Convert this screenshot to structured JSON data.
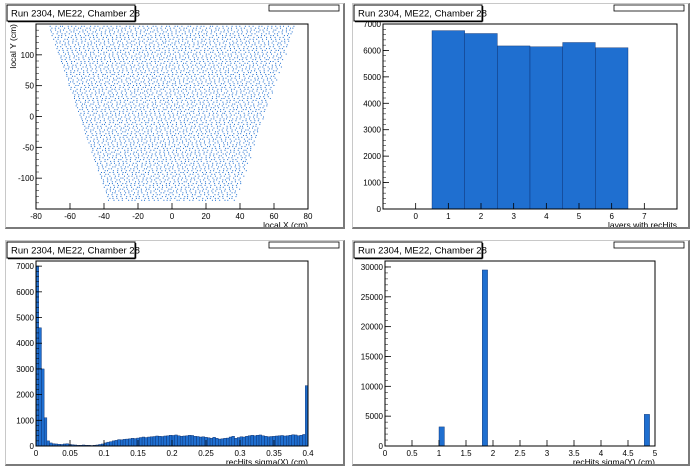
{
  "chart_data": [
    {
      "type": "scatter",
      "title": "Run 2304, ME22, Chamber 28",
      "stats_box": "",
      "xlabel": "local X (cm)",
      "ylabel": "local Y (cm)",
      "xlim": [
        -80,
        80
      ],
      "ylim": [
        -150,
        150
      ],
      "xticks": [
        -80,
        -60,
        -40,
        -20,
        0,
        20,
        40,
        60,
        80
      ],
      "yticks": [
        -100,
        -50,
        0,
        50,
        100
      ],
      "region": {
        "y": [
          -135,
          148
        ],
        "halfwidth_at_ymin": 37,
        "halfwidth_at_ymax": 72
      },
      "color": "#1f6fd0"
    },
    {
      "type": "bar",
      "title": "Run 2304, ME22, Chamber 28",
      "stats_box": "",
      "xlabel": "layers with recHits",
      "ylabel": "",
      "xlim": [
        -1,
        8
      ],
      "ylim": [
        0,
        7000
      ],
      "xticks": [
        0,
        1,
        2,
        3,
        4,
        5,
        6,
        7
      ],
      "yticks": [
        0,
        1000,
        2000,
        3000,
        4000,
        5000,
        6000,
        7000
      ],
      "bin_width": 1,
      "x": [
        1,
        2,
        3,
        4,
        5,
        6
      ],
      "values": [
        6750,
        6640,
        6170,
        6140,
        6300,
        6100
      ],
      "color": "#1f6fd0"
    },
    {
      "type": "bar",
      "title": "Run 2304, ME22, Chamber 28",
      "stats_box": "",
      "xlabel": "recHits sigma(X) (cm)",
      "ylabel": "",
      "xlim": [
        0,
        0.4
      ],
      "ylim": [
        0,
        7200
      ],
      "xticks": [
        0,
        0.05,
        0.1,
        0.15,
        0.2,
        0.25,
        0.3,
        0.35,
        0.4
      ],
      "xtick_labels": [
        "0",
        "0.05",
        "0.1",
        "0.15",
        "0.2",
        "0.25",
        "0.3",
        "0.35",
        "0.4"
      ],
      "yticks": [
        0,
        1000,
        2000,
        3000,
        4000,
        5000,
        6000,
        7000
      ],
      "bin_width": 0.004,
      "values": [
        7000,
        4600,
        3000,
        1100,
        200,
        120,
        90,
        80,
        70,
        60,
        80,
        90,
        60,
        50,
        40,
        30,
        30,
        40,
        30,
        30,
        20,
        30,
        40,
        60,
        80,
        120,
        150,
        170,
        200,
        220,
        250,
        240,
        260,
        270,
        280,
        300,
        290,
        310,
        330,
        350,
        330,
        350,
        360,
        370,
        390,
        380,
        370,
        390,
        400,
        420,
        410,
        430,
        400,
        380,
        390,
        400,
        420,
        410,
        380,
        370,
        350,
        360,
        340,
        320,
        300,
        340,
        300,
        270,
        280,
        300,
        310,
        350,
        380,
        300,
        330,
        360,
        350,
        380,
        400,
        420,
        400,
        420,
        430,
        400,
        380,
        360,
        370,
        380,
        390,
        400,
        410,
        390,
        400,
        420,
        440,
        430,
        400,
        420,
        450,
        2350
      ],
      "color": "#1f6fd0"
    },
    {
      "type": "bar",
      "title": "Run 2304, ME22, Chamber 28",
      "stats_box": "",
      "xlabel": "recHits sigma(Y) (cm)",
      "ylabel": "",
      "xlim": [
        0,
        5
      ],
      "ylim": [
        0,
        31000
      ],
      "xticks": [
        0,
        0.5,
        1,
        1.5,
        2,
        2.5,
        3,
        3.5,
        4,
        4.5,
        5
      ],
      "xtick_labels": [
        "0",
        "0.5",
        "1",
        "1.5",
        "2",
        "2.5",
        "3",
        "3.5",
        "4",
        "4.5",
        "5"
      ],
      "yticks": [
        0,
        5000,
        10000,
        15000,
        20000,
        25000,
        30000
      ],
      "bin_width": 0.1,
      "bins": [
        [
          1.0,
          3200
        ],
        [
          1.8,
          29500
        ],
        [
          4.8,
          5300
        ]
      ],
      "color": "#1f6fd0"
    }
  ]
}
